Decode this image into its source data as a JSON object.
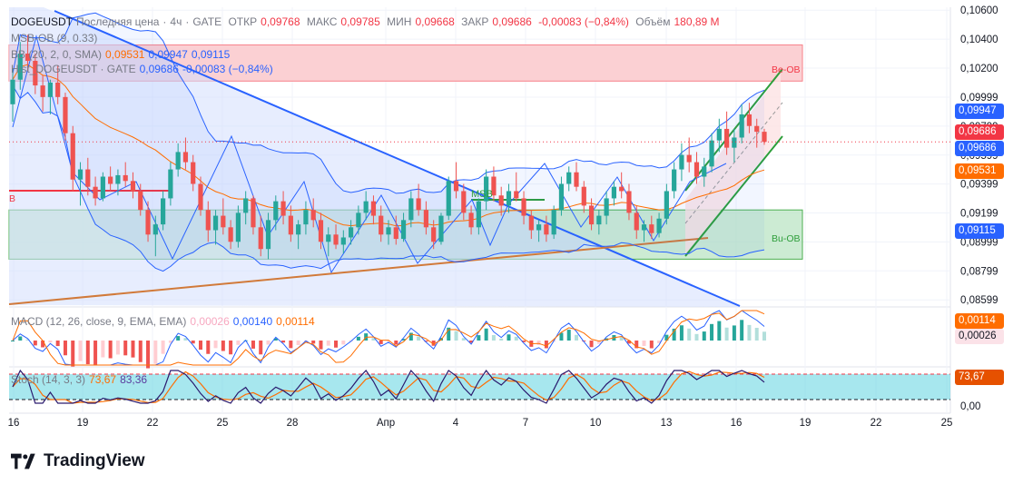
{
  "header": {
    "symbol": "DOGEUSDT",
    "price_type": "Последняя цена",
    "timeframe": "4ч",
    "exchange": "GATE",
    "open_label": "ОТКР",
    "open": "0,09768",
    "high_label": "МАКС",
    "high": "0,09785",
    "low_label": "МИН",
    "low": "0,09668",
    "close_label": "ЗАКР",
    "close": "0,09686",
    "change": "-0,00083 (−0,84%)",
    "volume_label": "Объём",
    "volume": "180,89 M"
  },
  "indicators": {
    "msb": "MSB-OB (9, 0.33)",
    "bb_label": "BB (20, 2, 0, SMA)",
    "bb_mid": "0,09531",
    "bb_upper": "0,09947",
    "bb_lower": "0,09115",
    "compare_label": "Hist_DOGEUSDT · GATE",
    "compare_value": "0,09686",
    "compare_change": "-0,00083 (−0,84%)",
    "macd_label": "MACD (12, 26, close, 9, EMA, EMA)",
    "macd_hist": "0,00026",
    "macd_line": "0,00140",
    "macd_signal": "0,00114",
    "stoch_label": "Stoch (14, 3, 3)",
    "stoch_k": "73,67",
    "stoch_d": "83,36"
  },
  "annotations": {
    "be_ob": "Be-OB",
    "bu_ob": "Bu-OB",
    "msb": "MSB",
    "b": "B"
  },
  "price_tags": {
    "bb_upper": "0,09947",
    "close_red": "0,09686",
    "close_blue": "0,09686",
    "bb_mid": "0,09531",
    "bb_lower": "0,09115",
    "macd_signal": "0,00114",
    "macd_hist": "0,00026",
    "stoch": "73,67"
  },
  "brand": "TradingView",
  "colors": {
    "up": "#26a69a",
    "down": "#ef5350",
    "bb": "#2962ff",
    "trend_blue": "#2962ff",
    "trend_orange": "#d17a3a",
    "channel": "#2e9e3a",
    "be_ob_fill": "#f7a8ac",
    "bu_ob_fill": "#8fd19e"
  },
  "chart_data": {
    "type": "candlestick",
    "y_axis": {
      "min": 0.0855,
      "max": 0.1062,
      "ticks": [
        "0,10600",
        "0,10400",
        "0,10200",
        "0,09999",
        "0,09799",
        "0,09599",
        "0,09399",
        "0,09199",
        "0,08999",
        "0,08799",
        "0,08599"
      ]
    },
    "macd_axis": {
      "min": -0.002,
      "max": 0.002
    },
    "stoch_axis": {
      "min": 0,
      "max": 100,
      "ticks": [
        "0,00"
      ],
      "upper_band": 80,
      "lower_band": 20
    },
    "x_axis": {
      "ticks": [
        "16",
        "19",
        "22",
        "25",
        "28",
        "Апр",
        "4",
        "7",
        "10",
        "13",
        "16",
        "19",
        "22",
        "25"
      ]
    },
    "series": [
      {
        "name": "BB upper",
        "last": 0.09947
      },
      {
        "name": "BB middle",
        "last": 0.09531
      },
      {
        "name": "BB lower",
        "last": 0.09115
      },
      {
        "name": "close",
        "last": 0.09686
      }
    ],
    "zones": [
      {
        "name": "Be-OB",
        "from": 0.1011,
        "to": 0.1036
      },
      {
        "name": "Bu-OB",
        "from": 0.0888,
        "to": 0.0922
      }
    ],
    "candles": [
      [
        0.0995,
        0.102,
        0.0983,
        0.1012
      ],
      [
        0.1012,
        0.1038,
        0.1005,
        0.103
      ],
      [
        0.103,
        0.1043,
        0.1018,
        0.1025
      ],
      [
        0.1025,
        0.103,
        0.1002,
        0.1008
      ],
      [
        0.1008,
        0.1015,
        0.099,
        0.1
      ],
      [
        0.1,
        0.1012,
        0.0988,
        0.101
      ],
      [
        0.101,
        0.1022,
        0.0995,
        0.1
      ],
      [
        0.1,
        0.1003,
        0.097,
        0.0975
      ],
      [
        0.0975,
        0.098,
        0.0935,
        0.0943
      ],
      [
        0.0943,
        0.0955,
        0.0925,
        0.095
      ],
      [
        0.095,
        0.0958,
        0.0932,
        0.0938
      ],
      [
        0.0938,
        0.0945,
        0.0925,
        0.093
      ],
      [
        0.093,
        0.0948,
        0.0928,
        0.0945
      ],
      [
        0.0945,
        0.0952,
        0.0935,
        0.094
      ],
      [
        0.094,
        0.095,
        0.0932,
        0.0946
      ],
      [
        0.0946,
        0.0955,
        0.0938,
        0.0942
      ],
      [
        0.0942,
        0.0948,
        0.093,
        0.0935
      ],
      [
        0.0935,
        0.094,
        0.0918,
        0.0922
      ],
      [
        0.0922,
        0.0928,
        0.09,
        0.0905
      ],
      [
        0.0905,
        0.0918,
        0.089,
        0.0912
      ],
      [
        0.0912,
        0.0935,
        0.0908,
        0.093
      ],
      [
        0.093,
        0.0955,
        0.0925,
        0.095
      ],
      [
        0.095,
        0.0968,
        0.0945,
        0.0962
      ],
      [
        0.0962,
        0.0972,
        0.095,
        0.0955
      ],
      [
        0.0955,
        0.096,
        0.0935,
        0.094
      ],
      [
        0.094,
        0.0945,
        0.0918,
        0.0922
      ],
      [
        0.0922,
        0.0928,
        0.09,
        0.0908
      ],
      [
        0.0908,
        0.0922,
        0.0898,
        0.0918
      ],
      [
        0.0918,
        0.093,
        0.0905,
        0.091
      ],
      [
        0.091,
        0.0915,
        0.0895,
        0.09
      ],
      [
        0.09,
        0.0925,
        0.0896,
        0.092
      ],
      [
        0.092,
        0.0935,
        0.0912,
        0.093
      ],
      [
        0.093,
        0.0932,
        0.0905,
        0.091
      ],
      [
        0.091,
        0.0918,
        0.089,
        0.0895
      ],
      [
        0.0895,
        0.092,
        0.0888,
        0.0915
      ],
      [
        0.0915,
        0.0932,
        0.0908,
        0.0928
      ],
      [
        0.0928,
        0.0935,
        0.0912,
        0.0918
      ],
      [
        0.0918,
        0.0925,
        0.09,
        0.0905
      ],
      [
        0.0905,
        0.0915,
        0.0895,
        0.0912
      ],
      [
        0.0912,
        0.0928,
        0.0905,
        0.0922
      ],
      [
        0.0922,
        0.093,
        0.091,
        0.0915
      ],
      [
        0.0915,
        0.092,
        0.0895,
        0.09
      ],
      [
        0.09,
        0.091,
        0.089,
        0.0905
      ],
      [
        0.0905,
        0.0912,
        0.0895,
        0.0898
      ],
      [
        0.0898,
        0.0908,
        0.0892,
        0.0903
      ],
      [
        0.0903,
        0.0915,
        0.0898,
        0.091
      ],
      [
        0.091,
        0.0925,
        0.0905,
        0.092
      ],
      [
        0.092,
        0.0935,
        0.0915,
        0.0928
      ],
      [
        0.0928,
        0.0932,
        0.0912,
        0.0918
      ],
      [
        0.0918,
        0.0925,
        0.09,
        0.0905
      ],
      [
        0.0905,
        0.0915,
        0.0898,
        0.091
      ],
      [
        0.091,
        0.0918,
        0.0898,
        0.0902
      ],
      [
        0.0902,
        0.092,
        0.09,
        0.0915
      ],
      [
        0.0915,
        0.0935,
        0.091,
        0.093
      ],
      [
        0.093,
        0.094,
        0.0918,
        0.0922
      ],
      [
        0.0922,
        0.0928,
        0.0905,
        0.091
      ],
      [
        0.091,
        0.0915,
        0.0895,
        0.09
      ],
      [
        0.09,
        0.092,
        0.0898,
        0.0918
      ],
      [
        0.0918,
        0.0945,
        0.0915,
        0.0942
      ],
      [
        0.0942,
        0.0955,
        0.093,
        0.0935
      ],
      [
        0.0935,
        0.094,
        0.0915,
        0.092
      ],
      [
        0.092,
        0.0925,
        0.0905,
        0.091
      ],
      [
        0.091,
        0.093,
        0.0905,
        0.0928
      ],
      [
        0.0928,
        0.095,
        0.0922,
        0.0945
      ],
      [
        0.0945,
        0.0952,
        0.0928,
        0.0932
      ],
      [
        0.0932,
        0.0938,
        0.0918,
        0.0925
      ],
      [
        0.0925,
        0.094,
        0.092,
        0.0935
      ],
      [
        0.0935,
        0.0948,
        0.0928,
        0.093
      ],
      [
        0.093,
        0.0935,
        0.0912,
        0.0918
      ],
      [
        0.0918,
        0.0922,
        0.0902,
        0.0908
      ],
      [
        0.0908,
        0.0915,
        0.09,
        0.0912
      ],
      [
        0.0912,
        0.0918,
        0.09,
        0.0905
      ],
      [
        0.0905,
        0.0925,
        0.0902,
        0.0922
      ],
      [
        0.0922,
        0.0945,
        0.0918,
        0.094
      ],
      [
        0.094,
        0.0952,
        0.0935,
        0.0948
      ],
      [
        0.0948,
        0.0955,
        0.0935,
        0.0938
      ],
      [
        0.0938,
        0.0942,
        0.092,
        0.0925
      ],
      [
        0.0925,
        0.093,
        0.0908,
        0.0912
      ],
      [
        0.0912,
        0.0922,
        0.0905,
        0.0918
      ],
      [
        0.0918,
        0.0935,
        0.0912,
        0.093
      ],
      [
        0.093,
        0.0942,
        0.0925,
        0.0938
      ],
      [
        0.0938,
        0.0948,
        0.093,
        0.0935
      ],
      [
        0.0935,
        0.094,
        0.0915,
        0.092
      ],
      [
        0.092,
        0.0925,
        0.0902,
        0.0908
      ],
      [
        0.0908,
        0.0915,
        0.09,
        0.0912
      ],
      [
        0.0912,
        0.0918,
        0.0902,
        0.0906
      ],
      [
        0.0906,
        0.092,
        0.0903,
        0.0916
      ],
      [
        0.0916,
        0.094,
        0.0912,
        0.0935
      ],
      [
        0.0935,
        0.0955,
        0.093,
        0.095
      ],
      [
        0.095,
        0.0968,
        0.0942,
        0.096
      ],
      [
        0.096,
        0.0972,
        0.0948,
        0.0955
      ],
      [
        0.0955,
        0.0962,
        0.094,
        0.0945
      ],
      [
        0.0945,
        0.0958,
        0.0938,
        0.0952
      ],
      [
        0.0952,
        0.0975,
        0.0948,
        0.097
      ],
      [
        0.097,
        0.0985,
        0.0962,
        0.0978
      ],
      [
        0.0978,
        0.099,
        0.096,
        0.0965
      ],
      [
        0.0965,
        0.0978,
        0.0955,
        0.0972
      ],
      [
        0.0972,
        0.0995,
        0.0968,
        0.0988
      ],
      [
        0.0988,
        0.0996,
        0.0975,
        0.098
      ],
      [
        0.098,
        0.0985,
        0.0965,
        0.0976
      ],
      [
        0.0976,
        0.0978,
        0.0967,
        0.0969
      ]
    ]
  }
}
